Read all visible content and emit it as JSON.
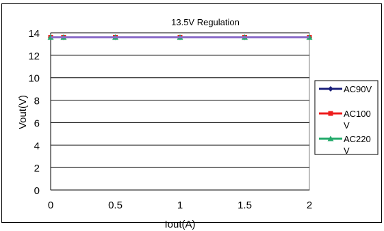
{
  "chart_data": {
    "type": "line",
    "title": "13.5V Regulation",
    "xlabel": "Iout(A)",
    "ylabel": "Vout(V)",
    "xlim": [
      0,
      2
    ],
    "ylim": [
      0,
      14
    ],
    "x_ticks": [
      "0",
      "0.5",
      "1",
      "1.5",
      "2"
    ],
    "y_ticks": [
      "0",
      "2",
      "4",
      "6",
      "8",
      "10",
      "12",
      "14"
    ],
    "grid": true,
    "legend": "right",
    "x": [
      0,
      0.1,
      0.5,
      1,
      1.5,
      2
    ],
    "series": [
      {
        "name": "AC90V",
        "values": [
          13.6,
          13.6,
          13.6,
          13.6,
          13.6,
          13.6
        ],
        "color": "#1a1f7a",
        "marker": "diamond"
      },
      {
        "name": "AC100V",
        "values": [
          13.6,
          13.6,
          13.6,
          13.6,
          13.6,
          13.6
        ],
        "color": "#ee1c1c",
        "marker": "square"
      },
      {
        "name": "AC220V",
        "values": [
          13.6,
          13.6,
          13.6,
          13.6,
          13.6,
          13.6
        ],
        "color": "#22aa6a",
        "marker": "triangle"
      }
    ],
    "overlay_line_color": "#8a6cc8"
  }
}
